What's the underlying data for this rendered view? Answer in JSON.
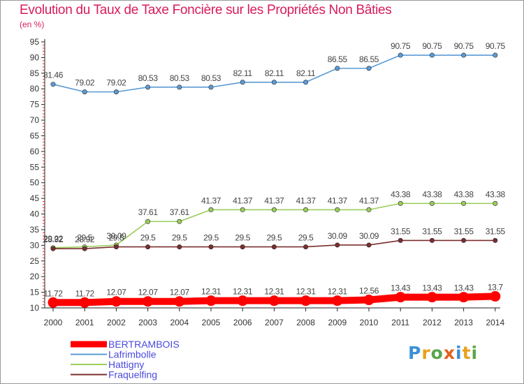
{
  "title": "Evolution du Taux de Taxe Foncière sur les Propriétés Non Bâties",
  "subtitle": "(en %)",
  "logo": {
    "text": "Proxiti",
    "letters": [
      "P",
      "r",
      "o",
      "x",
      "i",
      "t",
      "i"
    ],
    "colors": [
      "#3a8fd6",
      "#e6a21f",
      "#5aa64c",
      "#e3621e",
      "#3a8fd6",
      "#e6a21f",
      "#5aa64c"
    ]
  },
  "chart_data": {
    "type": "line",
    "title": "Evolution du Taux de Taxe Foncière sur les Propriétés Non Bâties",
    "ylabel": "(en %)",
    "xlabel": "",
    "categories": [
      "2000",
      "2001",
      "2002",
      "2003",
      "2004",
      "2005",
      "2006",
      "2007",
      "2008",
      "2009",
      "2010",
      "2011",
      "2012",
      "2013",
      "2014"
    ],
    "ylim": [
      10,
      95
    ],
    "yticks": [
      10,
      15,
      20,
      25,
      30,
      35,
      40,
      45,
      50,
      55,
      60,
      65,
      70,
      75,
      80,
      85,
      90,
      95
    ],
    "series": [
      {
        "name": "BERTRAMBOIS",
        "color": "#ff0000",
        "emphasis": true,
        "values": [
          11.72,
          11.72,
          12.07,
          12.07,
          12.07,
          12.31,
          12.31,
          12.31,
          12.31,
          12.31,
          12.56,
          13.43,
          13.43,
          13.43,
          13.7
        ],
        "labels": [
          "11.72",
          "11.72",
          "12.07",
          "12.07",
          "12.07",
          "12.31",
          "12.31",
          "12.31",
          "12.31",
          "12.31",
          "12.56",
          "13.43",
          "13.43",
          "13.43",
          "13.7"
        ]
      },
      {
        "name": "Lafrimbolle",
        "color": "#5b9bd5",
        "emphasis": false,
        "values": [
          81.46,
          79.02,
          79.02,
          80.53,
          80.53,
          80.53,
          82.11,
          82.11,
          82.11,
          86.55,
          86.55,
          90.75,
          90.75,
          90.75,
          90.75
        ],
        "labels": [
          "81.46",
          "79.02",
          "79.02",
          "80.53",
          "80.53",
          "80.53",
          "82.11",
          "82.11",
          "82.11",
          "86.55",
          "86.55",
          "90.75",
          "90.75",
          "90.75",
          "90.75"
        ]
      },
      {
        "name": "Hattigny",
        "color": "#9acd5a",
        "emphasis": false,
        "values": [
          29.22,
          29.5,
          30.09,
          37.61,
          37.61,
          41.37,
          41.37,
          41.37,
          41.37,
          41.37,
          41.37,
          43.38,
          43.38,
          43.38,
          43.38
        ],
        "labels": [
          "29.22",
          "29.5",
          "30.09",
          "37.61",
          "37.61",
          "41.37",
          "41.37",
          "41.37",
          "41.37",
          "41.37",
          "41.37",
          "43.38",
          "43.38",
          "43.38",
          "43.38"
        ]
      },
      {
        "name": "Fraquelfing",
        "color": "#7b2e2e",
        "emphasis": false,
        "values": [
          28.92,
          28.92,
          29.5,
          29.5,
          29.5,
          29.5,
          29.5,
          29.5,
          29.5,
          30.09,
          30.09,
          31.55,
          31.55,
          31.55,
          31.55
        ],
        "labels": [
          "28.92",
          "28.92",
          "29.5",
          "29.5",
          "29.5",
          "29.5",
          "29.5",
          "29.5",
          "29.5",
          "30.09",
          "30.09",
          "31.55",
          "31.55",
          "31.55",
          "31.55"
        ]
      }
    ],
    "legend": [
      "BERTRAMBOIS",
      "Lafrimbolle",
      "Hattigny",
      "Fraquelfing"
    ],
    "grid": false
  }
}
